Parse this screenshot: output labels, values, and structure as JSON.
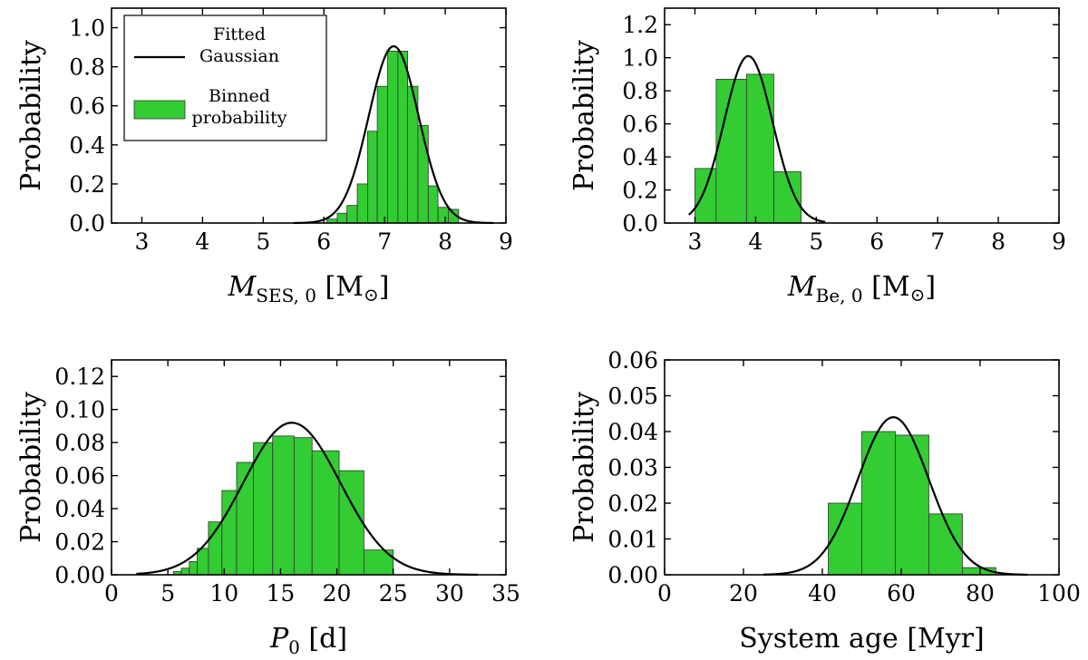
{
  "colors": {
    "bar": "#33cc33",
    "curve": "#000000"
  },
  "chart_data": [
    {
      "type": "bar",
      "ylabel": "Probability",
      "xlabel_parts": {
        "main": "M",
        "sub": "SES, 0",
        "unit_open": " [M",
        "unit_sym": "⊙",
        "unit_close": "]"
      },
      "xlim": [
        2.5,
        9
      ],
      "ylim": [
        0,
        1.1
      ],
      "xticks": [
        3,
        4,
        5,
        6,
        7,
        8,
        9
      ],
      "xtick_labels": [
        "3",
        "4",
        "5",
        "6",
        "7",
        "8",
        "9"
      ],
      "yticks": [
        0,
        0.2,
        0.4,
        0.6,
        0.8,
        1.0
      ],
      "ytick_labels": [
        "0.0",
        "0.2",
        "0.4",
        "0.6",
        "0.8",
        "1.0"
      ],
      "bins": [
        {
          "x0": 6.05,
          "x1": 6.22,
          "y": 0.02
        },
        {
          "x0": 6.22,
          "x1": 6.38,
          "y": 0.05
        },
        {
          "x0": 6.38,
          "x1": 6.55,
          "y": 0.09
        },
        {
          "x0": 6.55,
          "x1": 6.72,
          "y": 0.2
        },
        {
          "x0": 6.72,
          "x1": 6.88,
          "y": 0.47
        },
        {
          "x0": 6.88,
          "x1": 7.05,
          "y": 0.7
        },
        {
          "x0": 7.05,
          "x1": 7.22,
          "y": 0.88
        },
        {
          "x0": 7.22,
          "x1": 7.38,
          "y": 0.88
        },
        {
          "x0": 7.38,
          "x1": 7.55,
          "y": 0.7
        },
        {
          "x0": 7.55,
          "x1": 7.72,
          "y": 0.5
        },
        {
          "x0": 7.72,
          "x1": 7.88,
          "y": 0.19
        },
        {
          "x0": 7.88,
          "x1": 8.05,
          "y": 0.08
        },
        {
          "x0": 8.05,
          "x1": 8.22,
          "y": 0.07
        }
      ],
      "gaussian": {
        "mu": 7.15,
        "sigma": 0.41,
        "amplitude": 0.905,
        "xrange": [
          5.5,
          8.8
        ]
      },
      "legend": {
        "position": "top-left",
        "line_label": [
          "Fitted",
          "Gaussian"
        ],
        "bar_label": [
          "Binned",
          "probability"
        ]
      }
    },
    {
      "type": "bar",
      "ylabel": "Probability",
      "xlabel_parts": {
        "main": "M",
        "sub": "Be, 0",
        "unit_open": " [M",
        "unit_sym": "⊙",
        "unit_close": "]"
      },
      "xlim": [
        2.5,
        9
      ],
      "ylim": [
        0,
        1.3
      ],
      "xticks": [
        3,
        4,
        5,
        6,
        7,
        8,
        9
      ],
      "xtick_labels": [
        "3",
        "4",
        "5",
        "6",
        "7",
        "8",
        "9"
      ],
      "yticks": [
        0,
        0.2,
        0.4,
        0.6,
        0.8,
        1.0,
        1.2
      ],
      "ytick_labels": [
        "0.0",
        "0.2",
        "0.4",
        "0.6",
        "0.8",
        "1.0",
        "1.2"
      ],
      "bins": [
        {
          "x0": 3.0,
          "x1": 3.35,
          "y": 0.33
        },
        {
          "x0": 3.35,
          "x1": 3.85,
          "y": 0.87
        },
        {
          "x0": 3.85,
          "x1": 4.3,
          "y": 0.9
        },
        {
          "x0": 4.3,
          "x1": 4.75,
          "y": 0.31
        }
      ],
      "gaussian": {
        "mu": 3.88,
        "sigma": 0.4,
        "amplitude": 1.01,
        "xrange": [
          2.9,
          5.15
        ]
      }
    },
    {
      "type": "bar",
      "ylabel": "Probability",
      "xlabel_parts": {
        "main": "P",
        "sub": "0",
        "unit_open": " [d]",
        "unit_sym": "",
        "unit_close": ""
      },
      "xlim": [
        0,
        35
      ],
      "ylim": [
        0,
        0.13
      ],
      "xticks": [
        0,
        5,
        10,
        15,
        20,
        25,
        30,
        35
      ],
      "xtick_labels": [
        "0",
        "5",
        "10",
        "15",
        "20",
        "25",
        "30",
        "35"
      ],
      "yticks": [
        0,
        0.02,
        0.04,
        0.06,
        0.08,
        0.1,
        0.12
      ],
      "ytick_labels": [
        "0.00",
        "0.02",
        "0.04",
        "0.06",
        "0.08",
        "0.10",
        "0.12"
      ],
      "bins": [
        {
          "x0": 5.5,
          "x1": 6.2,
          "y": 0.002
        },
        {
          "x0": 6.2,
          "x1": 6.9,
          "y": 0.004
        },
        {
          "x0": 6.9,
          "x1": 7.6,
          "y": 0.008
        },
        {
          "x0": 7.6,
          "x1": 8.6,
          "y": 0.016
        },
        {
          "x0": 8.6,
          "x1": 9.8,
          "y": 0.032
        },
        {
          "x0": 9.8,
          "x1": 11.1,
          "y": 0.051
        },
        {
          "x0": 11.1,
          "x1": 12.6,
          "y": 0.068
        },
        {
          "x0": 12.6,
          "x1": 14.3,
          "y": 0.08
        },
        {
          "x0": 14.3,
          "x1": 16.2,
          "y": 0.084
        },
        {
          "x0": 16.2,
          "x1": 17.8,
          "y": 0.083
        },
        {
          "x0": 17.8,
          "x1": 20.2,
          "y": 0.075
        },
        {
          "x0": 20.2,
          "x1": 22.4,
          "y": 0.063
        },
        {
          "x0": 22.4,
          "x1": 25.0,
          "y": 0.015
        }
      ],
      "gaussian": {
        "mu": 16.0,
        "sigma": 4.3,
        "amplitude": 0.092,
        "xrange": [
          2.2,
          32.5
        ]
      }
    },
    {
      "type": "bar",
      "ylabel": "Probability",
      "xlabel_parts": {
        "main": "System age [Myr]",
        "sub": "",
        "unit_open": "",
        "unit_sym": "",
        "unit_close": ""
      },
      "xlim": [
        0,
        100
      ],
      "ylim": [
        0,
        0.06
      ],
      "xticks": [
        0,
        20,
        40,
        60,
        80,
        100
      ],
      "xtick_labels": [
        "0",
        "20",
        "40",
        "60",
        "80",
        "100"
      ],
      "yticks": [
        0,
        0.01,
        0.02,
        0.03,
        0.04,
        0.05,
        0.06
      ],
      "ytick_labels": [
        "0.00",
        "0.01",
        "0.02",
        "0.03",
        "0.04",
        "0.05",
        "0.06"
      ],
      "bins": [
        {
          "x0": 41.5,
          "x1": 50.0,
          "y": 0.02
        },
        {
          "x0": 50.0,
          "x1": 58.5,
          "y": 0.04
        },
        {
          "x0": 58.5,
          "x1": 67.0,
          "y": 0.039
        },
        {
          "x0": 67.0,
          "x1": 75.5,
          "y": 0.017
        },
        {
          "x0": 75.5,
          "x1": 84.0,
          "y": 0.002
        }
      ],
      "gaussian": {
        "mu": 58.0,
        "sigma": 9.0,
        "amplitude": 0.044,
        "xrange": [
          25,
          92
        ]
      }
    }
  ]
}
